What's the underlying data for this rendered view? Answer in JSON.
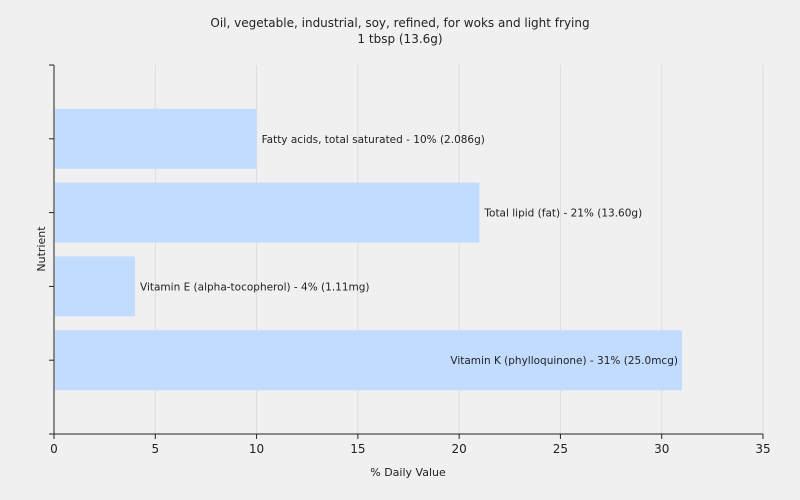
{
  "chart_data": {
    "type": "bar",
    "orientation": "horizontal",
    "title": "Oil, vegetable, industrial, soy, refined, for woks and light frying",
    "subtitle": "1 tbsp (13.6g)",
    "xlabel": "% Daily Value",
    "ylabel": "Nutrient",
    "xlim": [
      0,
      35
    ],
    "xticks": [
      0,
      5,
      10,
      15,
      20,
      25,
      30,
      35
    ],
    "grid": "vertical",
    "bar_color": "#c2dcff",
    "bars": [
      {
        "label": "Fatty acids, total saturated - 10% (2.086g)",
        "value": 10
      },
      {
        "label": "Total lipid (fat) - 21% (13.60g)",
        "value": 21
      },
      {
        "label": "Vitamin E (alpha-tocopherol) - 4% (1.11mg)",
        "value": 4
      },
      {
        "label": "Vitamin K (phylloquinone) - 31% (25.0mcg)",
        "value": 31
      }
    ]
  }
}
